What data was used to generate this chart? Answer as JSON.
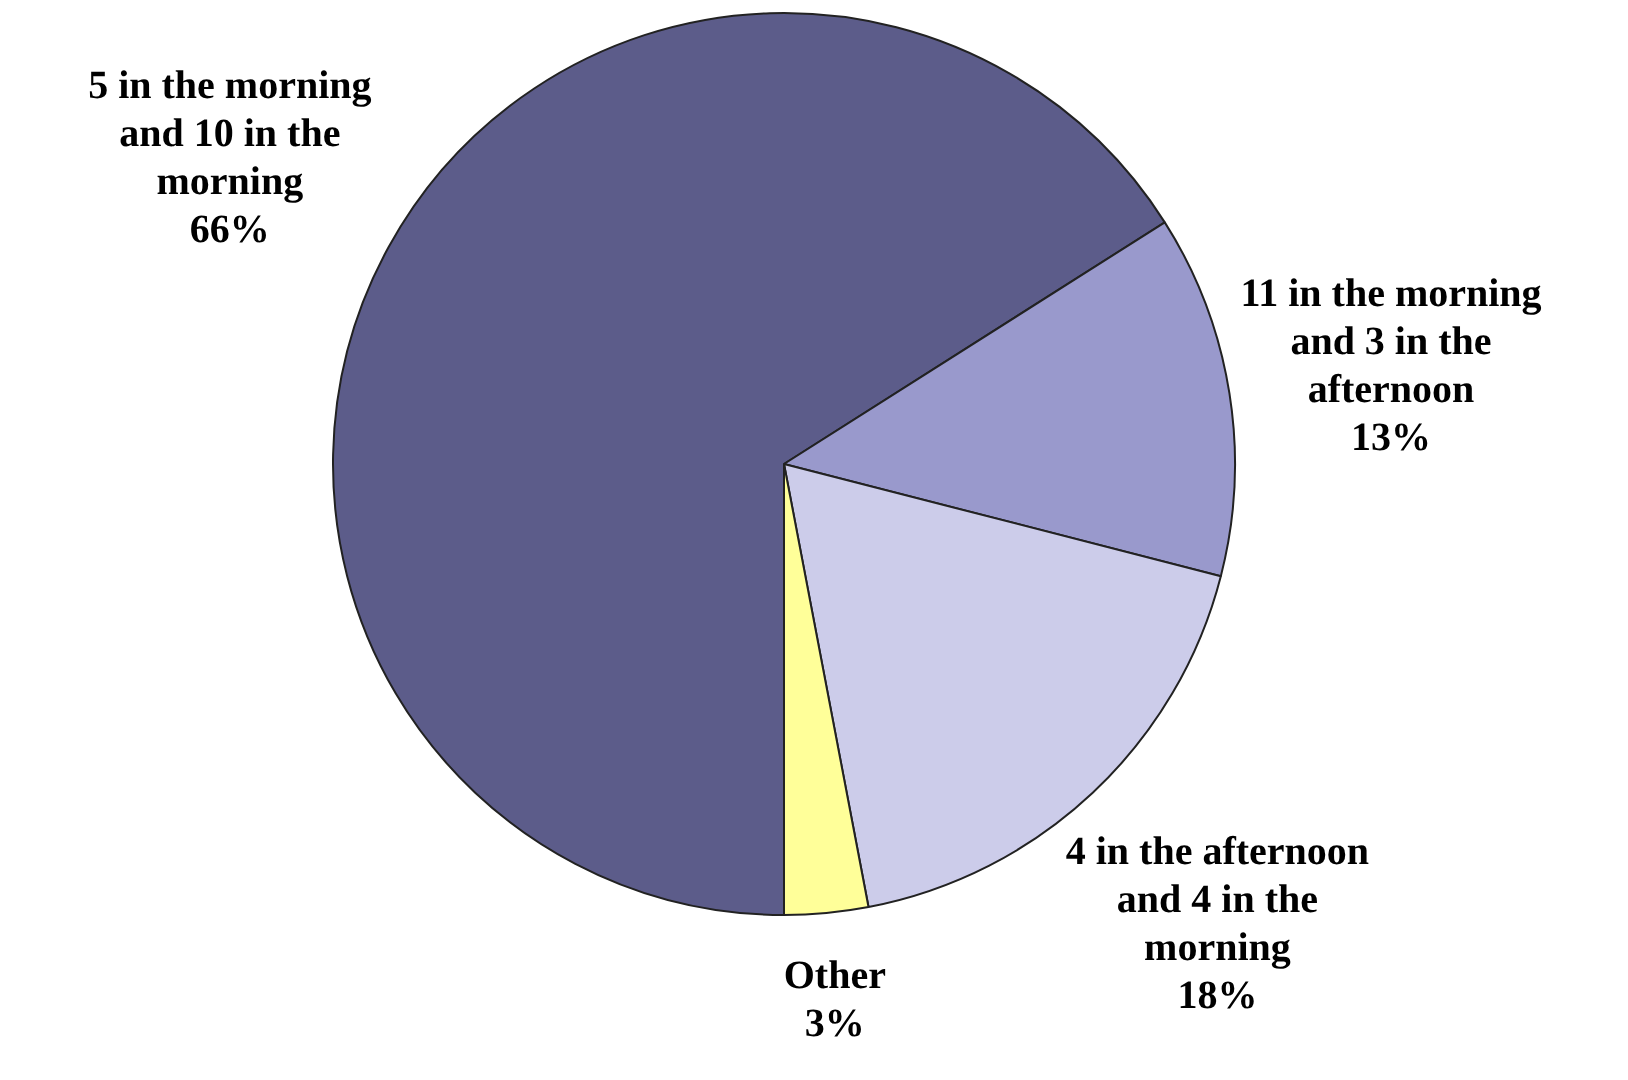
{
  "chart_data": {
    "type": "pie",
    "categories": [
      "5 in the morning and 10 in the morning",
      "11 in the morning and 3 in the afternoon",
      "4 in the afternoon and 4 in the morning",
      "Other"
    ],
    "values": [
      66,
      13,
      18,
      3
    ],
    "value_labels": [
      "66%",
      "13%",
      "18%",
      "3%"
    ],
    "colors": [
      "#5c5c8a",
      "#9999cc",
      "#ccccea",
      "#ffff99"
    ],
    "legend": false
  }
}
